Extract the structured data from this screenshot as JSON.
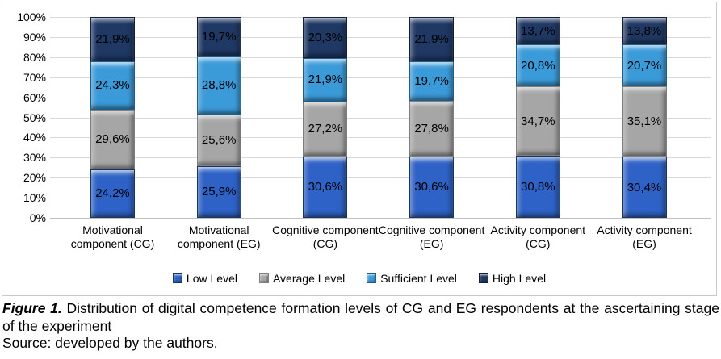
{
  "chart_data": {
    "type": "bar",
    "variant": "stacked-100-percent-column",
    "title": "",
    "xlabel": "",
    "ylabel": "",
    "ylim": [
      0,
      100
    ],
    "y_tick_step": 10,
    "y_tick_suffix": "%",
    "grid": true,
    "legend_position": "bottom",
    "categories": [
      "Motivational component (CG)",
      "Motivational component (EG)",
      "Cognitive component (CG)",
      "Cognitive component (EG)",
      "Activity component (CG)",
      "Activity component (EG)"
    ],
    "series": [
      {
        "name": "Low Level",
        "color": "#2E62C6",
        "border_color": "#17375E",
        "values": [
          24.2,
          25.9,
          30.6,
          30.6,
          30.8,
          30.4
        ],
        "labels": [
          "24,2%",
          "25,9%",
          "30,6%",
          "30,6%",
          "30,8%",
          "30,4%"
        ]
      },
      {
        "name": "Average Level",
        "color": "#A6A6A6",
        "border_color": "#7F7F7F",
        "values": [
          29.6,
          25.6,
          27.2,
          27.8,
          34.7,
          35.1
        ],
        "labels": [
          "29,6%",
          "25,6%",
          "27,2%",
          "27,8%",
          "34,7%",
          "35,1%"
        ]
      },
      {
        "name": "Sufficient Level",
        "color": "#3B9BD9",
        "border_color": "#1C5E8F",
        "values": [
          24.3,
          28.8,
          21.9,
          19.7,
          20.8,
          20.7
        ],
        "labels": [
          "24,3%",
          "28,8%",
          "21,9%",
          "19,7%",
          "20,8%",
          "20,7%"
        ]
      },
      {
        "name": "High Level",
        "color": "#1F3864",
        "border_color": "#0F1F3D",
        "values": [
          21.9,
          19.7,
          20.3,
          21.9,
          13.7,
          13.8
        ],
        "labels": [
          "21,9%",
          "19,7%",
          "20,3%",
          "21,9%",
          "13,7%",
          "13,8%"
        ]
      }
    ],
    "colors": {
      "gridline": "#D9D9D9",
      "axis_baseline": "#BFBFBF",
      "frame_border": "#C9C9C9",
      "label_text": "#000000"
    }
  },
  "caption": {
    "figure_label": "Figure 1.",
    "figure_text": " Distribution of digital competence formation levels of CG and EG respondents at the ascertaining stage of the experiment",
    "source": "Source: developed by the authors."
  }
}
